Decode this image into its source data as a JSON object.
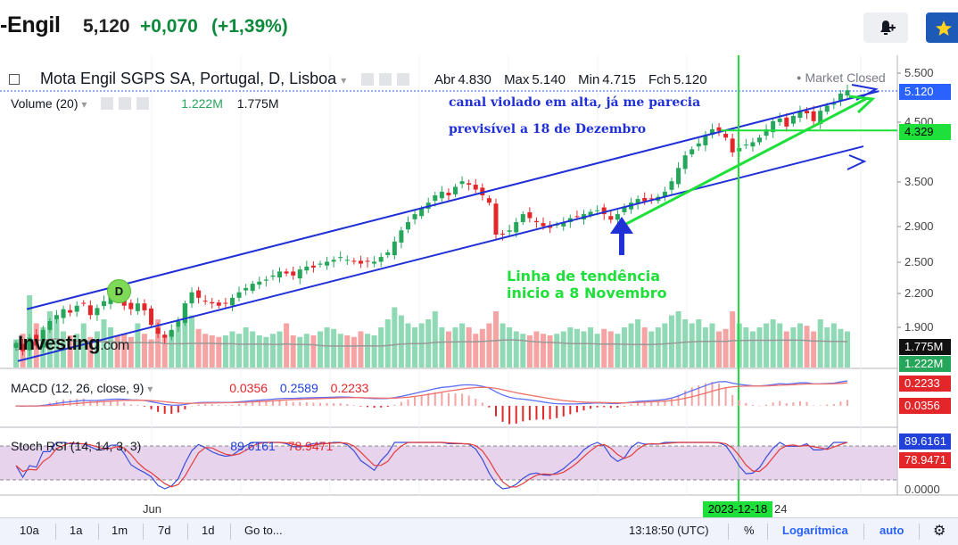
{
  "header": {
    "name": "-Engil",
    "price": "5,120",
    "change": "+0,070",
    "change_pct": "(+1,39%)"
  },
  "legend": {
    "title": "Mota Engil SGPS SA, Portugal, D, Lisboa",
    "ohlc": [
      {
        "k": "Abr",
        "v": "4.830"
      },
      {
        "k": "Max",
        "v": "5.140"
      },
      {
        "k": "Min",
        "v": "4.715"
      },
      {
        "k": "Fch",
        "v": "5.120"
      }
    ],
    "market_status": "Market Closed",
    "volume_label": "Volume (20)",
    "volume_v1": "1.222M",
    "volume_v2": "1.775M",
    "macd_label": "MACD (12, 26, close, 9)",
    "macd_v1": "0.0356",
    "macd_v2": "0.2589",
    "macd_v3": "0.2233",
    "stoch_label": "Stoch RSI (14, 14, 3, 3)",
    "stoch_v1": "89.6161",
    "stoch_v2": "78.9471"
  },
  "annotations": {
    "blue_line1": "canal violado em alta, já me parecia",
    "blue_line2": "previsível a 18 de Dezembro",
    "green_line1": "Linha de tendência",
    "green_line2": "inicio a 8 Novembro",
    "marker": "D",
    "logo": "Investing",
    "logo_suffix": ".com"
  },
  "price_scale": [
    "5.500",
    "4.500",
    "3.500",
    "2.900",
    "2.500",
    "2.200",
    "1.900"
  ],
  "price_tags": {
    "last": "5.120",
    "level": "4.329",
    "vol1": "1.775M",
    "vol2": "1.222M",
    "macd1": "0.2233",
    "macd2": "0.0356",
    "stoch1": "89.6161",
    "stoch2": "78.9471",
    "stoch_zero": "0.0000"
  },
  "x_axis": {
    "jun": "Jun",
    "marked_date": "2023-12-18",
    "next": "24"
  },
  "toolbar": {
    "ranges": [
      "10a",
      "1a",
      "1m",
      "7d",
      "1d"
    ],
    "goto": "Go to...",
    "time": "13:18:50 (UTC)",
    "pct": "%",
    "log": "Logarítmica",
    "auto": "auto",
    "gear": "gear-icon"
  },
  "colors": {
    "up": "#26a65b",
    "down": "#e3262a",
    "channel": "#1f30d6",
    "trend": "#1fe03a"
  },
  "chart_data": {
    "type": "candlestick",
    "scale": "log",
    "ylim": [
      1.7,
      5.6
    ],
    "close": [
      1.78,
      1.72,
      1.82,
      1.76,
      1.88,
      1.95,
      2.0,
      2.05,
      2.02,
      2.08,
      2.1,
      2.0,
      2.06,
      2.12,
      2.18,
      2.15,
      2.08,
      2.05,
      2.1,
      2.04,
      1.92,
      1.85,
      1.82,
      1.88,
      1.95,
      2.1,
      2.2,
      2.15,
      2.12,
      2.1,
      2.08,
      2.1,
      2.15,
      2.2,
      2.24,
      2.28,
      2.3,
      2.32,
      2.36,
      2.4,
      2.38,
      2.36,
      2.42,
      2.45,
      2.44,
      2.48,
      2.5,
      2.52,
      2.55,
      2.52,
      2.5,
      2.48,
      2.5,
      2.5,
      2.55,
      2.6,
      2.72,
      2.85,
      2.95,
      3.05,
      3.12,
      3.2,
      3.3,
      3.35,
      3.3,
      3.42,
      3.5,
      3.45,
      3.38,
      3.3,
      3.2,
      2.8,
      2.8,
      2.85,
      2.95,
      3.05,
      3.0,
      2.95,
      2.9,
      2.88,
      2.92,
      2.95,
      3.0,
      3.02,
      3.05,
      3.08,
      3.1,
      3.05,
      2.98,
      3.05,
      3.15,
      3.2,
      3.25,
      3.22,
      3.25,
      3.28,
      3.35,
      3.5,
      3.7,
      3.9,
      4.0,
      4.1,
      4.25,
      4.35,
      4.32,
      4.2,
      3.95,
      4.02,
      4.08,
      4.12,
      4.2,
      4.35,
      4.5,
      4.55,
      4.4,
      4.6,
      4.7,
      4.65,
      4.5,
      4.7,
      4.8,
      4.85,
      5.05,
      5.12
    ],
    "volume_rel": [
      0.35,
      0.42,
      0.9,
      0.55,
      0.5,
      0.7,
      0.6,
      0.45,
      0.4,
      0.42,
      0.55,
      0.38,
      0.45,
      0.6,
      0.5,
      0.4,
      0.42,
      0.38,
      0.55,
      0.42,
      0.35,
      0.6,
      0.4,
      0.45,
      0.5,
      0.8,
      0.65,
      0.48,
      0.42,
      0.4,
      0.38,
      0.4,
      0.45,
      0.42,
      0.5,
      0.45,
      0.4,
      0.38,
      0.42,
      0.45,
      0.55,
      0.4,
      0.38,
      0.42,
      0.4,
      0.45,
      0.5,
      0.48,
      0.42,
      0.4,
      0.38,
      0.45,
      0.42,
      0.4,
      0.5,
      0.6,
      0.75,
      0.65,
      0.55,
      0.5,
      0.55,
      0.6,
      0.7,
      0.5,
      0.45,
      0.5,
      0.55,
      0.5,
      0.42,
      0.48,
      0.55,
      0.7,
      0.55,
      0.5,
      0.45,
      0.42,
      0.4,
      0.45,
      0.42,
      0.4,
      0.42,
      0.45,
      0.5,
      0.48,
      0.45,
      0.5,
      0.42,
      0.48,
      0.45,
      0.42,
      0.5,
      0.55,
      0.6,
      0.5,
      0.45,
      0.5,
      0.55,
      0.65,
      0.7,
      0.6,
      0.55,
      0.6,
      0.5,
      0.55,
      0.45,
      0.48,
      0.7,
      0.55,
      0.5,
      0.45,
      0.5,
      0.55,
      0.6,
      0.55,
      0.45,
      0.5,
      0.55,
      0.52,
      0.45,
      0.6,
      0.5,
      0.55,
      0.48,
      0.45
    ],
    "channel_upper": {
      "start": 2.05,
      "end": 5.1
    },
    "channel_lower": {
      "start": 1.65,
      "end": 4.05
    },
    "trend_line": {
      "start": 2.9,
      "end": 4.95
    },
    "horizontal_level": 4.329,
    "vertical_marker": "2023-12-18"
  }
}
